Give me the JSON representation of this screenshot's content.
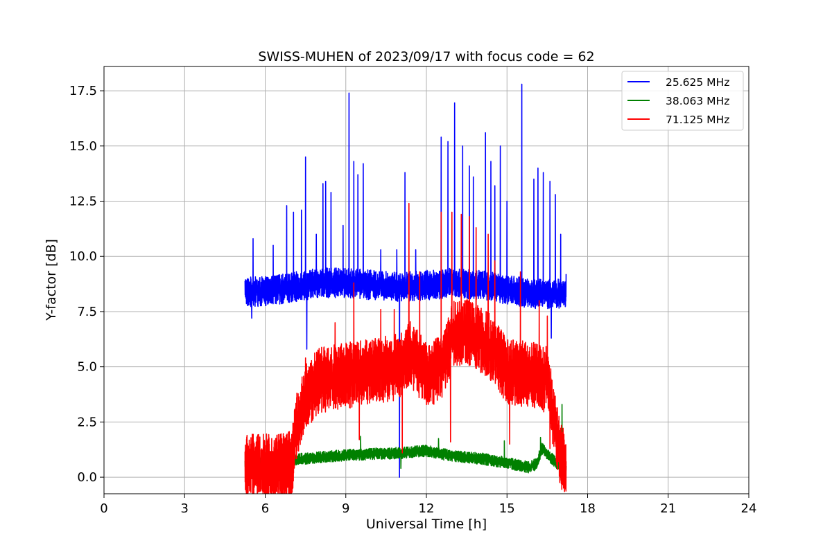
{
  "chart_data": {
    "type": "line",
    "title": "SWISS-MUHEN of 2023/09/17 with focus code = 62",
    "xlabel": "Universal Time [h]",
    "ylabel": "Y-factor [dB]",
    "xlim": [
      0,
      24
    ],
    "ylim": [
      -0.75,
      18.6
    ],
    "xticks": [
      0,
      3,
      6,
      9,
      12,
      15,
      18,
      21,
      24
    ],
    "xtick_labels": [
      "0",
      "3",
      "6",
      "9",
      "12",
      "15",
      "18",
      "21",
      "24"
    ],
    "yticks": [
      0,
      2.5,
      5,
      7.5,
      10,
      12.5,
      15,
      17.5
    ],
    "ytick_labels": [
      "0.0",
      "2.5",
      "5.0",
      "7.5",
      "10.0",
      "12.5",
      "15.0",
      "17.5"
    ],
    "grid": true,
    "legend_position": "top-right",
    "series": [
      {
        "name": "25.625 MHz",
        "color": "#0000ff",
        "x_start": 5.25,
        "x_end": 17.2,
        "baseline": [
          [
            5.25,
            8.4
          ],
          [
            6.0,
            8.4
          ],
          [
            7.0,
            8.6
          ],
          [
            8.0,
            8.8
          ],
          [
            9.0,
            8.8
          ],
          [
            10.0,
            8.7
          ],
          [
            11.0,
            8.6
          ],
          [
            12.0,
            8.7
          ],
          [
            13.0,
            8.8
          ],
          [
            14.0,
            8.7
          ],
          [
            15.0,
            8.5
          ],
          [
            16.0,
            8.3
          ],
          [
            17.2,
            8.3
          ]
        ],
        "spread": 0.9,
        "spikes": [
          [
            5.55,
            10.8
          ],
          [
            6.3,
            10.5
          ],
          [
            6.8,
            12.3
          ],
          [
            7.05,
            12.0
          ],
          [
            7.35,
            12.1
          ],
          [
            7.5,
            14.5
          ],
          [
            7.9,
            11.0
          ],
          [
            8.15,
            13.3
          ],
          [
            8.25,
            13.4
          ],
          [
            8.45,
            12.9
          ],
          [
            8.9,
            11.4
          ],
          [
            9.12,
            17.4
          ],
          [
            9.3,
            14.3
          ],
          [
            9.45,
            13.7
          ],
          [
            9.65,
            14.2
          ],
          [
            10.3,
            10.3
          ],
          [
            10.9,
            10.3
          ],
          [
            11.2,
            13.8
          ],
          [
            11.6,
            10.3
          ],
          [
            12.55,
            15.4
          ],
          [
            12.8,
            15.2
          ],
          [
            13.05,
            16.95
          ],
          [
            13.35,
            15.0
          ],
          [
            13.6,
            14.1
          ],
          [
            13.75,
            13.6
          ],
          [
            14.2,
            15.6
          ],
          [
            14.4,
            14.3
          ],
          [
            14.55,
            13.2
          ],
          [
            14.75,
            15.0
          ],
          [
            15.0,
            12.5
          ],
          [
            15.55,
            17.8
          ],
          [
            16.0,
            13.5
          ],
          [
            16.15,
            14.0
          ],
          [
            16.35,
            13.8
          ],
          [
            16.6,
            13.4
          ],
          [
            16.8,
            12.8
          ],
          [
            17.0,
            11.0
          ],
          [
            17.2,
            9.2
          ]
        ],
        "dips": [
          [
            5.5,
            7.2
          ],
          [
            7.55,
            5.8
          ],
          [
            11.0,
            0.0
          ],
          [
            16.65,
            6.3
          ]
        ]
      },
      {
        "name": "38.063 MHz",
        "color": "#008000",
        "x_start": 5.25,
        "x_end": 17.2,
        "baseline": [
          [
            5.25,
            0.7
          ],
          [
            6.0,
            0.7
          ],
          [
            7.0,
            0.8
          ],
          [
            8.0,
            0.9
          ],
          [
            9.0,
            1.0
          ],
          [
            10.0,
            1.05
          ],
          [
            11.0,
            1.1
          ],
          [
            12.0,
            1.2
          ],
          [
            13.0,
            0.95
          ],
          [
            14.0,
            0.85
          ],
          [
            15.0,
            0.65
          ],
          [
            15.8,
            0.45
          ],
          [
            16.1,
            0.6
          ],
          [
            16.3,
            1.3
          ],
          [
            16.7,
            0.8
          ],
          [
            17.2,
            0.3
          ]
        ],
        "spread": 0.35,
        "spikes": [
          [
            9.55,
            1.85
          ],
          [
            12.45,
            1.75
          ],
          [
            14.9,
            1.65
          ],
          [
            16.25,
            1.8
          ],
          [
            17.05,
            3.3
          ]
        ],
        "dips": [
          [
            11.05,
            0.4
          ],
          [
            17.15,
            0.2
          ]
        ]
      },
      {
        "name": "71.125 MHz",
        "color": "#ff0000",
        "x_start": 5.25,
        "x_end": 17.2,
        "baseline": [
          [
            5.25,
            0.45
          ],
          [
            6.0,
            0.45
          ],
          [
            7.0,
            0.6
          ],
          [
            7.15,
            2.2
          ],
          [
            7.5,
            3.6
          ],
          [
            8.0,
            4.4
          ],
          [
            9.0,
            4.6
          ],
          [
            10.0,
            4.8
          ],
          [
            11.0,
            5.0
          ],
          [
            11.4,
            5.6
          ],
          [
            12.0,
            4.6
          ],
          [
            12.6,
            5.0
          ],
          [
            13.0,
            6.5
          ],
          [
            13.5,
            6.6
          ],
          [
            14.5,
            5.8
          ],
          [
            15.0,
            4.8
          ],
          [
            16.0,
            4.6
          ],
          [
            16.5,
            4.4
          ],
          [
            16.8,
            2.2
          ],
          [
            17.0,
            0.9
          ],
          [
            17.2,
            0.6
          ]
        ],
        "spread": 2.0,
        "spikes": [
          [
            7.5,
            5.4
          ],
          [
            8.6,
            7.0
          ],
          [
            9.3,
            8.8
          ],
          [
            10.3,
            7.6
          ],
          [
            10.8,
            7.6
          ],
          [
            11.35,
            12.4
          ],
          [
            11.75,
            9.3
          ],
          [
            12.55,
            12.0
          ],
          [
            12.95,
            12.0
          ],
          [
            13.3,
            11.9
          ],
          [
            13.6,
            11.8
          ],
          [
            13.85,
            11.3
          ],
          [
            14.3,
            11.0
          ],
          [
            14.55,
            9.8
          ],
          [
            15.5,
            9.3
          ],
          [
            16.2,
            8.0
          ],
          [
            16.5,
            7.3
          ]
        ],
        "dips": [
          [
            5.6,
            0.0
          ],
          [
            9.5,
            1.7
          ],
          [
            11.1,
            1.1
          ],
          [
            12.9,
            1.6
          ],
          [
            15.1,
            1.5
          ],
          [
            16.6,
            1.3
          ],
          [
            17.15,
            0.2
          ]
        ]
      }
    ]
  }
}
